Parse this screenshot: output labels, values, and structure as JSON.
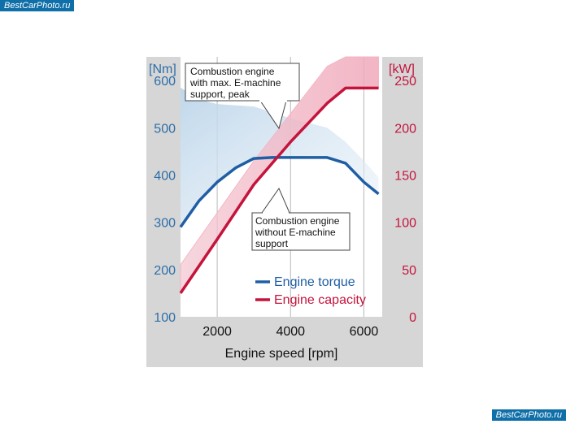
{
  "watermark": {
    "top": "BestCarPhoto.ru",
    "bottom": "BestCarPhoto.ru"
  },
  "colors": {
    "torque": "#1f5ea4",
    "capacity": "#c4143c",
    "left_axis": "#2d6ea8",
    "right_axis": "#c4143c",
    "panel": "#d6d6d6",
    "plot_bg": "#ffffff"
  },
  "chart_data": {
    "type": "line",
    "title": "",
    "xlabel": "Engine speed [rpm]",
    "x_ticks": [
      2000,
      4000,
      6000
    ],
    "xlim": [
      1000,
      6500
    ],
    "left_axis": {
      "unit": "[Nm]",
      "ticks": [
        100,
        200,
        300,
        400,
        500,
        600
      ],
      "ylim": [
        100,
        650
      ]
    },
    "right_axis": {
      "unit": "[kW]",
      "ticks": [
        0,
        50,
        100,
        150,
        200,
        250
      ],
      "ylim": [
        0,
        275
      ]
    },
    "legend": {
      "placement": "bottom-right",
      "entries": [
        "Engine torque",
        "Engine capacity"
      ]
    },
    "series": [
      {
        "name": "Engine torque",
        "axis": "left",
        "x": [
          1000,
          1500,
          2000,
          2500,
          3000,
          3500,
          4000,
          4500,
          5000,
          5500,
          6000,
          6400
        ],
        "values": [
          290,
          345,
          385,
          415,
          435,
          437,
          437,
          437,
          437,
          425,
          385,
          360
        ]
      },
      {
        "name": "Engine capacity",
        "axis": "right",
        "x": [
          1000,
          2000,
          3000,
          4000,
          5000,
          5500,
          6000,
          6400
        ],
        "values": [
          25,
          82,
          140,
          185,
          226,
          242,
          242,
          242
        ]
      }
    ],
    "shaded_areas": [
      {
        "name": "Torque E-machine support",
        "axis": "left",
        "x": [
          1000,
          1500,
          2000,
          3000,
          4000,
          4500,
          5000,
          5500,
          6000,
          6400
        ],
        "upper": [
          585,
          560,
          550,
          545,
          520,
          510,
          500,
          470,
          430,
          395
        ]
      },
      {
        "name": "Capacity E-machine support",
        "axis": "right",
        "x": [
          1000,
          2000,
          3000,
          4000,
          5000,
          5500,
          6000,
          6400
        ],
        "upper": [
          55,
          110,
          165,
          215,
          265,
          275,
          275,
          275
        ]
      }
    ],
    "annotations": [
      {
        "text": [
          "Combustion engine",
          "with max. E-machine",
          "support, peak"
        ]
      },
      {
        "text": [
          "Combustion engine",
          "without E-machine",
          "support"
        ]
      }
    ]
  }
}
